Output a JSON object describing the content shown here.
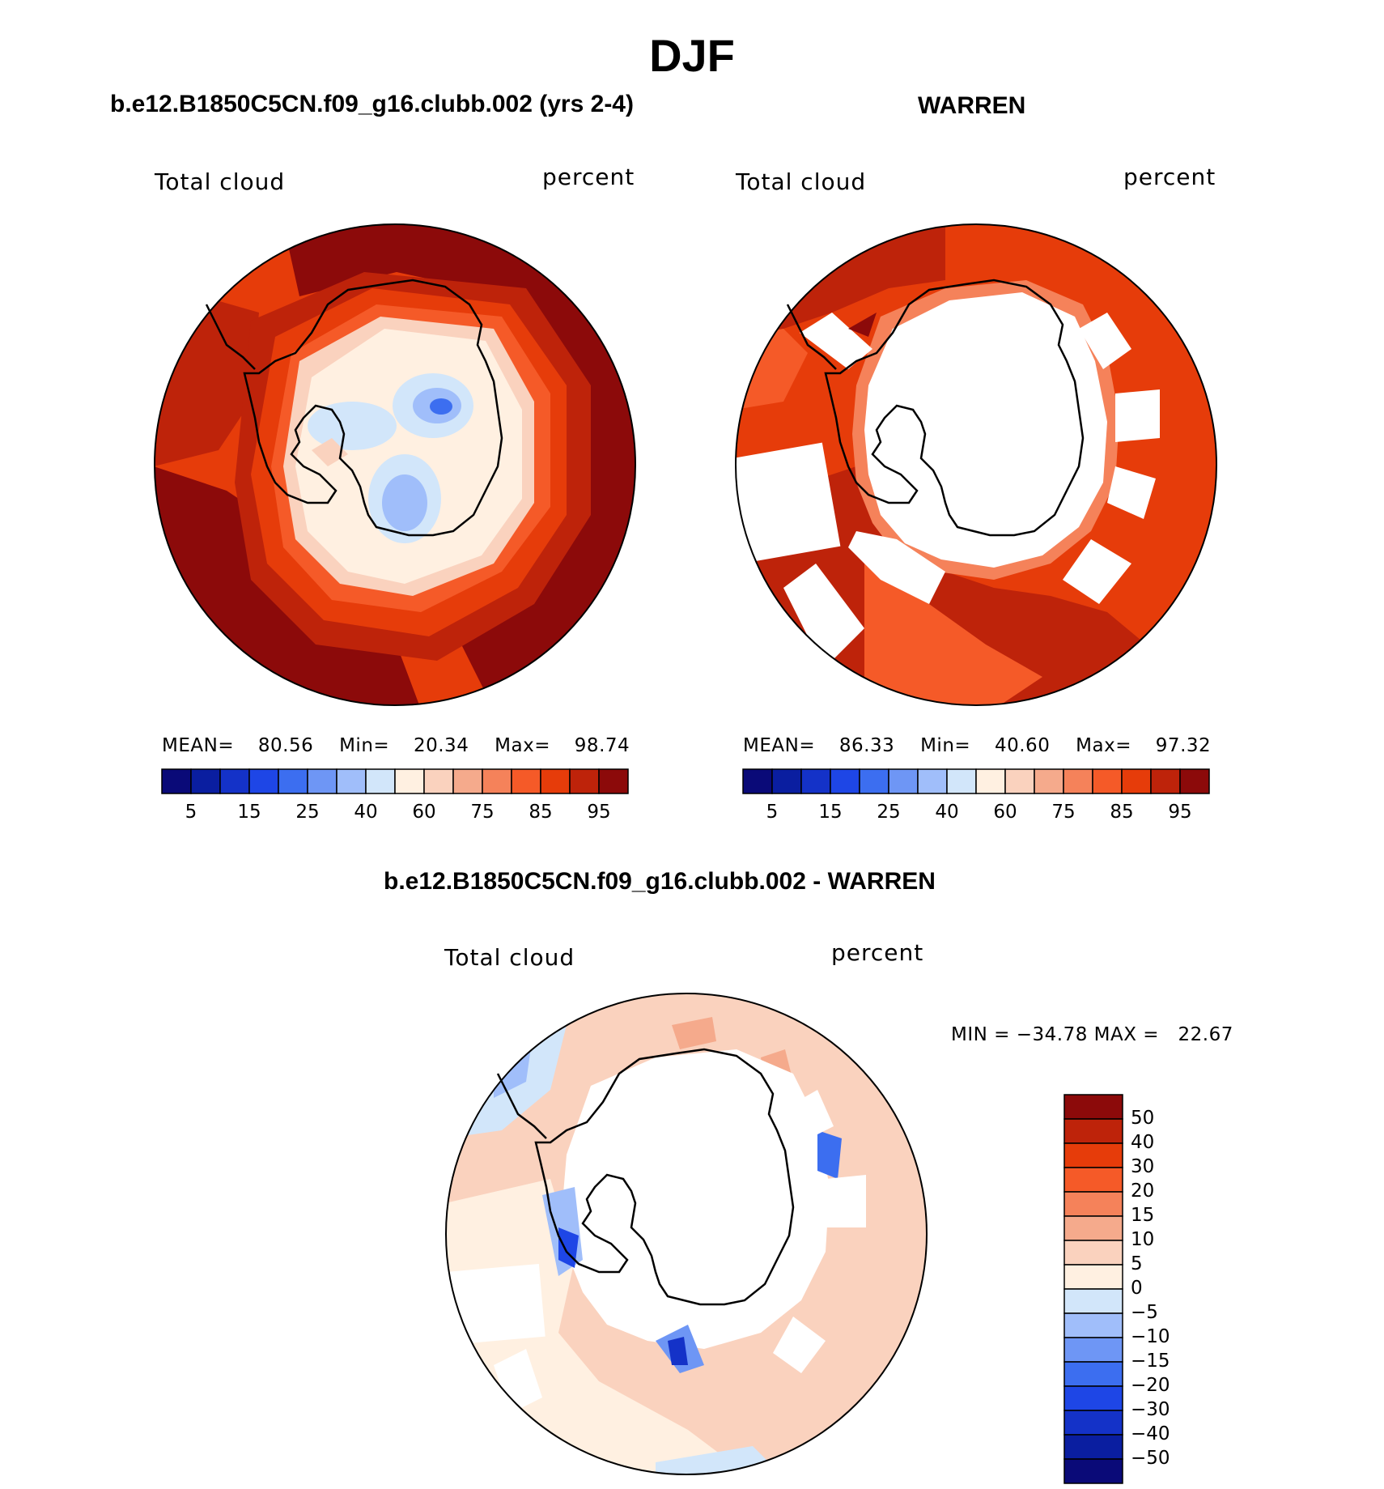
{
  "header": {
    "title": "DJF"
  },
  "panels": [
    {
      "title": "b.e12.B1850C5CN.f09_g16.clubb.002 (yrs 2-4)",
      "left_label": "Total cloud",
      "right_label": "percent",
      "mean_label": "MEAN=",
      "mean_value": "80.56",
      "min_label": "Min=",
      "min_value": "20.34",
      "max_label": "Max=",
      "max_value": "98.74"
    },
    {
      "title": "WARREN",
      "left_label": "Total cloud",
      "right_label": "percent",
      "mean_label": "MEAN=",
      "mean_value": "86.33",
      "min_label": "Min=",
      "min_value": "40.60",
      "max_label": "Max=",
      "max_value": "97.32"
    }
  ],
  "diff_panel": {
    "title": "b.e12.B1850C5CN.f09_g16.clubb.002 - WARREN",
    "left_label": "Total cloud",
    "right_label": "percent",
    "minmax_text": "MIN = −34.78 MAX =   22.67"
  },
  "horizontal_colorbar": {
    "colors": [
      "#0a0a78",
      "#0a1ea0",
      "#1432c8",
      "#1e46e6",
      "#3c6ef0",
      "#6e96f5",
      "#a0befa",
      "#d2e6fa",
      "#fff0e1",
      "#fad2be",
      "#f5aa8c",
      "#f5825a",
      "#f55a28",
      "#e63c0a",
      "#be230a",
      "#8c0a0a"
    ],
    "tick_labels": [
      "5",
      "15",
      "25",
      "40",
      "60",
      "75",
      "85",
      "95"
    ]
  },
  "vertical_colorbar": {
    "colors": [
      "#8c0a0a",
      "#be230a",
      "#e63c0a",
      "#f55a28",
      "#f5825a",
      "#f5aa8c",
      "#fad2be",
      "#fff0e1",
      "#d2e6fa",
      "#a0befa",
      "#6e96f5",
      "#3c6ef0",
      "#1e46e6",
      "#1432c8",
      "#0a1ea0",
      "#0a0a78"
    ],
    "tick_labels": [
      "50",
      "40",
      "30",
      "20",
      "15",
      "10",
      "5",
      "0",
      "−5",
      "−10",
      "−15",
      "−20",
      "−30",
      "−40",
      "−50"
    ]
  }
}
